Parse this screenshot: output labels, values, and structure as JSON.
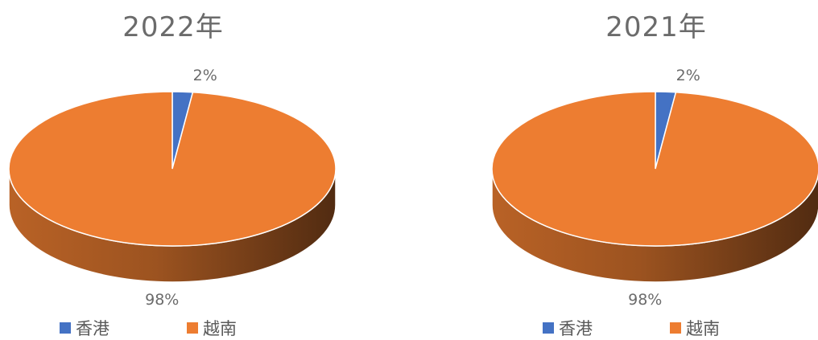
{
  "chart_data": [
    {
      "type": "pie",
      "title": "2022年",
      "categories": [
        "香港",
        "越南"
      ],
      "values": [
        2,
        98
      ],
      "data_labels": [
        "2%",
        "98%"
      ],
      "colors": [
        "#4472c4",
        "#ed7d31"
      ],
      "legend_position": "bottom"
    },
    {
      "type": "pie",
      "title": "2021年",
      "categories": [
        "香港",
        "越南"
      ],
      "values": [
        2,
        98
      ],
      "data_labels": [
        "2%",
        "98%"
      ],
      "colors": [
        "#4472c4",
        "#ed7d31"
      ],
      "legend_position": "bottom"
    }
  ]
}
